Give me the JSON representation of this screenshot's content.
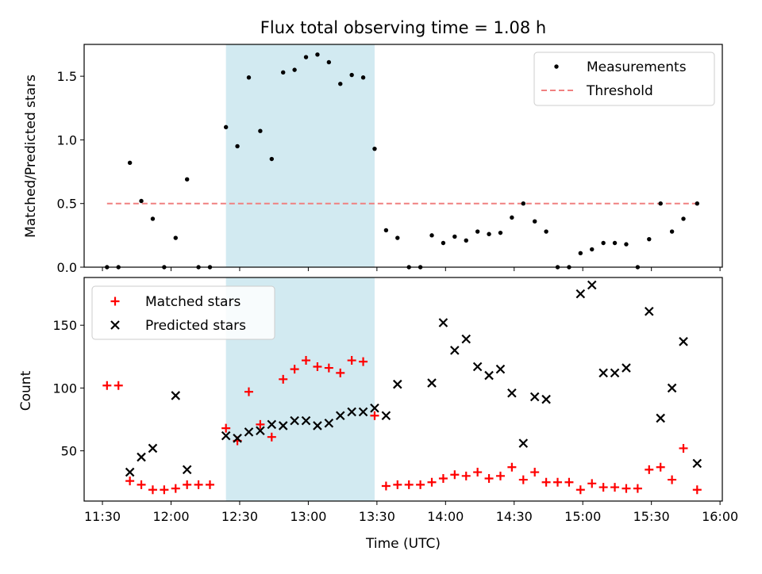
{
  "figure": {
    "title": "Flux total observing time = 1.08 h",
    "shaded_span": {
      "start": "12:24",
      "end": "13:29",
      "color": "#add8e6"
    },
    "x_axis": {
      "label": "Time (UTC)",
      "range": [
        "11:22",
        "16:01"
      ],
      "ticks": [
        "11:30",
        "12:00",
        "12:30",
        "13:00",
        "13:30",
        "14:00",
        "14:30",
        "15:00",
        "15:30",
        "16:00"
      ]
    },
    "colors": {
      "measurements": "#000000",
      "threshold": "#f08080",
      "matched": "#ff0000",
      "predicted": "#000000"
    }
  },
  "chart_data": [
    {
      "type": "scatter",
      "ylabel": "Matched/Predicted stars",
      "ylim": [
        0,
        1.75
      ],
      "yticks": [
        "0.0",
        "0.5",
        "1.0",
        "1.5"
      ],
      "legend_position": "upper right",
      "legend": [
        "Measurements",
        "Threshold"
      ],
      "threshold": {
        "value": 0.5,
        "x_range": [
          "11:32",
          "15:50"
        ]
      },
      "series": [
        {
          "name": "Measurements",
          "x": [
            "11:32",
            "11:37",
            "11:42",
            "11:47",
            "11:52",
            "11:57",
            "12:02",
            "12:07",
            "12:12",
            "12:17",
            "12:24",
            "12:29",
            "12:34",
            "12:39",
            "12:44",
            "12:49",
            "12:54",
            "12:59",
            "13:04",
            "13:09",
            "13:14",
            "13:19",
            "13:24",
            "13:29",
            "13:34",
            "13:39",
            "13:44",
            "13:49",
            "13:54",
            "13:59",
            "14:04",
            "14:09",
            "14:14",
            "14:19",
            "14:24",
            "14:29",
            "14:34",
            "14:39",
            "14:44",
            "14:49",
            "14:54",
            "14:59",
            "15:04",
            "15:09",
            "15:14",
            "15:19",
            "15:24",
            "15:29",
            "15:34",
            "15:39",
            "15:44",
            "15:50"
          ],
          "values": [
            0.0,
            0.0,
            0.82,
            0.52,
            0.38,
            0.0,
            0.23,
            0.69,
            0.0,
            0.0,
            1.1,
            0.95,
            1.49,
            1.07,
            0.85,
            1.53,
            1.55,
            1.65,
            1.67,
            1.61,
            1.44,
            1.51,
            1.49,
            0.93,
            0.29,
            0.23,
            0.0,
            0.0,
            0.25,
            0.19,
            0.24,
            0.21,
            0.28,
            0.26,
            0.27,
            0.39,
            0.5,
            0.36,
            0.28,
            0.0,
            0.0,
            0.11,
            0.14,
            0.19,
            0.19,
            0.18,
            0.0,
            0.22,
            0.5,
            0.28,
            0.38,
            0.5
          ]
        }
      ]
    },
    {
      "type": "scatter",
      "ylabel": "Count",
      "xlabel": "Time (UTC)",
      "ylim": [
        10,
        188
      ],
      "yticks": [
        "50",
        "100",
        "150"
      ],
      "legend_position": "upper left",
      "legend": [
        "Matched stars",
        "Predicted stars"
      ],
      "series": [
        {
          "name": "Matched stars",
          "x": [
            "11:32",
            "11:37",
            "11:42",
            "11:47",
            "11:52",
            "11:57",
            "12:02",
            "12:07",
            "12:12",
            "12:17",
            "12:24",
            "12:29",
            "12:34",
            "12:39",
            "12:44",
            "12:49",
            "12:54",
            "12:59",
            "13:04",
            "13:09",
            "13:14",
            "13:19",
            "13:24",
            "13:29",
            "13:34",
            "13:39",
            "13:44",
            "13:49",
            "13:54",
            "13:59",
            "14:04",
            "14:09",
            "14:14",
            "14:19",
            "14:24",
            "14:29",
            "14:34",
            "14:39",
            "14:44",
            "14:49",
            "14:54",
            "14:59",
            "15:04",
            "15:09",
            "15:14",
            "15:19",
            "15:24",
            "15:29",
            "15:34",
            "15:39",
            "15:44",
            "15:50"
          ],
          "values": [
            102,
            102,
            26,
            23,
            19,
            19,
            20,
            23,
            23,
            23,
            68,
            58,
            97,
            71,
            61,
            107,
            115,
            122,
            117,
            116,
            112,
            122,
            121,
            78,
            22,
            23,
            23,
            23,
            25,
            28,
            31,
            30,
            33,
            28,
            30,
            37,
            27,
            33,
            25,
            25,
            25,
            19,
            24,
            21,
            21,
            20,
            20,
            35,
            37,
            27,
            52,
            19
          ]
        },
        {
          "name": "Predicted stars",
          "x": [
            "11:42",
            "11:47",
            "11:52",
            "12:02",
            "12:07",
            "12:24",
            "12:29",
            "12:34",
            "12:39",
            "12:44",
            "12:49",
            "12:54",
            "12:59",
            "13:04",
            "13:09",
            "13:14",
            "13:19",
            "13:24",
            "13:29",
            "13:34",
            "13:39",
            "13:54",
            "13:59",
            "14:04",
            "14:09",
            "14:14",
            "14:19",
            "14:24",
            "14:29",
            "14:34",
            "14:39",
            "14:44",
            "14:59",
            "15:04",
            "15:09",
            "15:14",
            "15:19",
            "15:29",
            "15:34",
            "15:39",
            "15:44",
            "15:50"
          ],
          "values": [
            33,
            45,
            52,
            94,
            35,
            62,
            60,
            65,
            66,
            71,
            70,
            74,
            74,
            70,
            72,
            78,
            81,
            81,
            84,
            78,
            103,
            104,
            152,
            130,
            139,
            117,
            110,
            115,
            96,
            56,
            93,
            91,
            175,
            182,
            112,
            112,
            116,
            161,
            76,
            100,
            137,
            40
          ]
        }
      ]
    }
  ]
}
